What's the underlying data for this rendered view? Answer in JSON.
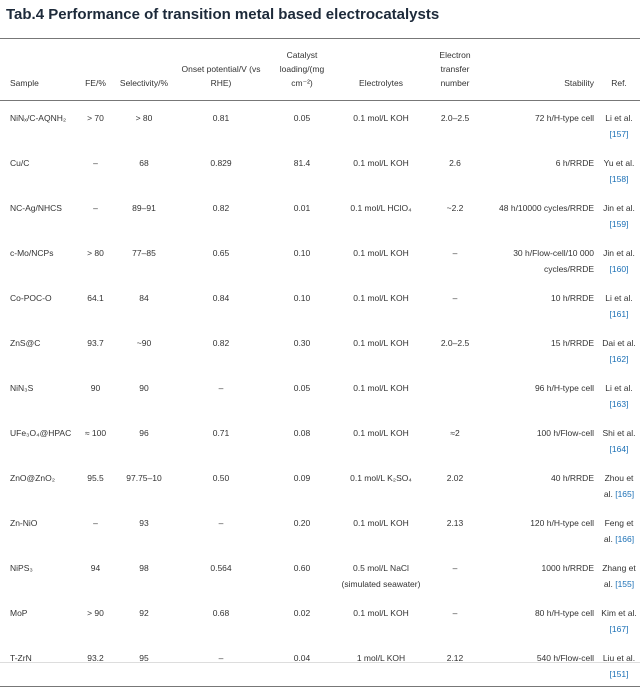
{
  "title": "Tab.4 Performance of transition metal based electrocatalysts",
  "table": {
    "header": [
      "Sample",
      "FE/%",
      "Selectivity/%",
      "Onset potential/V (vs RHE)",
      "Catalyst loading/(mg cm⁻²)",
      "Electrolytes",
      "Electron transfer number",
      "Stability",
      "Ref."
    ],
    "rows": [
      {
        "cells": [
          "NiNₓ/C-AQNH₂",
          "> 70",
          "> 80",
          "0.81",
          "0.05",
          "0.1 mol/L KOH",
          "2.0–2.5",
          "72 h/H-type cell"
        ],
        "ref": {
          "author": "Li et al.",
          "link": "[157]"
        }
      },
      {
        "cells": [
          "Cu/C",
          "–",
          "68",
          "0.829",
          "81.4",
          "0.1 mol/L KOH",
          "2.6",
          "6 h/RRDE"
        ],
        "ref": {
          "author": "Yu et al.",
          "link": "[158]"
        }
      },
      {
        "cells": [
          "NC-Ag/NHCS",
          "–",
          "89–91",
          "0.82",
          "0.01",
          "0.1 mol/L HClO₄",
          "~2.2",
          "48 h/10000 cycles/RRDE"
        ],
        "ref": {
          "author": "Jin et al.",
          "link": "[159]"
        }
      },
      {
        "cells": [
          "c-Mo/NCPs",
          "> 80",
          "77–85",
          "0.65",
          "0.10",
          "0.1 mol/L KOH",
          "–",
          "30 h/Flow-cell/10 000 cycles/RRDE"
        ],
        "ref": {
          "author": "Jin et al.",
          "link": "[160]"
        }
      },
      {
        "cells": [
          "Co-POC-O",
          "64.1",
          "84",
          "0.84",
          "0.10",
          "0.1 mol/L KOH",
          "–",
          "10 h/RRDE"
        ],
        "ref": {
          "author": "Li et al.",
          "link": "[161]"
        }
      },
      {
        "cells": [
          "ZnS@C",
          "93.7",
          "~90",
          "0.82",
          "0.30",
          "0.1 mol/L KOH",
          "2.0–2.5",
          "15 h/RRDE"
        ],
        "ref": {
          "author": "Dai et al.",
          "link": "[162]"
        }
      },
      {
        "cells": [
          "NiN₃S",
          "90",
          "90",
          "–",
          "0.05",
          "0.1 mol/L KOH",
          "",
          "96 h/H-type cell"
        ],
        "ref": {
          "author": "Li et al.",
          "link": "[163]"
        }
      },
      {
        "cells": [
          "UFe₃O₄@HPAC",
          "≈ 100",
          "96",
          "0.71",
          "0.08",
          "0.1 mol/L KOH",
          "≈2",
          "100 h/Flow-cell"
        ],
        "ref": {
          "author": "Shi et al.",
          "link": "[164]"
        }
      },
      {
        "cells": [
          "ZnO@ZnO₂",
          "95.5",
          "97.75–10",
          "0.50",
          "0.09",
          "0.1 mol/L K₂SO₄",
          "2.02",
          "40 h/RRDE"
        ],
        "ref": {
          "author": "Zhou et al.",
          "link": "[165]"
        }
      },
      {
        "cells": [
          "Zn-NiO",
          "–",
          "93",
          "–",
          "0.20",
          "0.1 mol/L KOH",
          "2.13",
          "120 h/H-type cell"
        ],
        "ref": {
          "author": "Feng et al.",
          "link": "[166]"
        }
      },
      {
        "cells": [
          "NiPS₃",
          "94",
          "98",
          "0.564",
          "0.60",
          "0.5 mol/L NaCl (simulated seawater)",
          "–",
          "1000 h/RRDE"
        ],
        "ref": {
          "author": "Zhang et al.",
          "link": "[155]"
        }
      },
      {
        "cells": [
          "MoP",
          "> 90",
          "92",
          "0.68",
          "0.02",
          "0.1 mol/L KOH",
          "–",
          "80 h/H-type cell"
        ],
        "ref": {
          "author": "Kim et al.",
          "link": "[167]"
        }
      },
      {
        "cells": [
          "T-ZrN",
          "93.2",
          "95",
          "–",
          "0.04",
          "1 mol/L KOH",
          "2.12",
          "540 h/Flow-cell"
        ],
        "ref": {
          "author": "Liu et al.",
          "link": "[151]"
        }
      }
    ]
  }
}
